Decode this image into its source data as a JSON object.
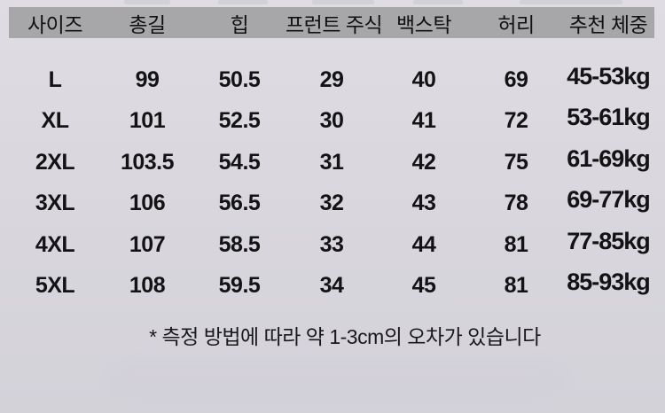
{
  "table": {
    "headers": [
      "사이즈",
      "총길",
      "힙",
      "프런트 주식",
      "백스탁",
      "허리",
      "추천 체중"
    ],
    "rows": [
      [
        "L",
        "99",
        "50.5",
        "29",
        "40",
        "69",
        "45-53kg"
      ],
      [
        "XL",
        "101",
        "52.5",
        "30",
        "41",
        "72",
        "53-61kg"
      ],
      [
        "2XL",
        "103.5",
        "54.5",
        "31",
        "42",
        "75",
        "61-69kg"
      ],
      [
        "3XL",
        "106",
        "56.5",
        "32",
        "43",
        "78",
        "69-77kg"
      ],
      [
        "4XL",
        "107",
        "58.5",
        "33",
        "44",
        "81",
        "77-85kg"
      ],
      [
        "5XL",
        "108",
        "59.5",
        "34",
        "45",
        "81",
        "85-93kg"
      ]
    ]
  },
  "footnote": {
    "text": "* 측정 방법에 따라 약 1-3cm의 오차가 있습니다"
  },
  "colors": {
    "background": "#d8d6dc",
    "header_bar": "#a7a6a9",
    "text": "#131315"
  }
}
